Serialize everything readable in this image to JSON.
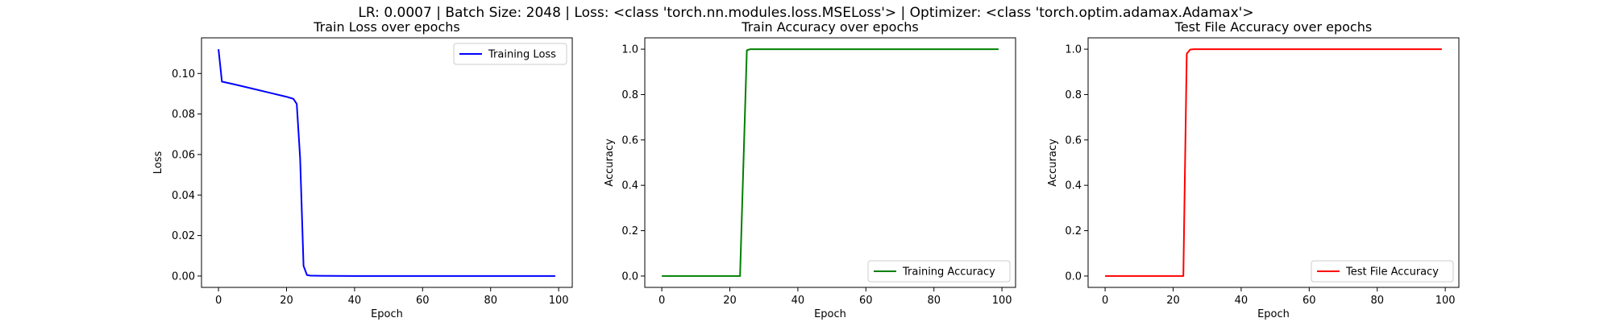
{
  "figure": {
    "suptitle": "LR: 0.0007 | Batch Size: 2048 | Loss: <class 'torch.nn.modules.loss.MSELoss'> | Optimizer: <class 'torch.optim.adamax.Adamax'>"
  },
  "chart_data": [
    {
      "type": "line",
      "title": "Train Loss over epochs",
      "xlabel": "Epoch",
      "ylabel": "Loss",
      "xlim": [
        -5,
        104
      ],
      "ylim": [
        -0.0056,
        0.1176
      ],
      "xticks": [
        0,
        20,
        40,
        60,
        80,
        100
      ],
      "xtick_labels": [
        "0",
        "20",
        "40",
        "60",
        "80",
        "100"
      ],
      "yticks": [
        0,
        0.02,
        0.04,
        0.06,
        0.08,
        0.1
      ],
      "ytick_labels": [
        "0.00",
        "0.02",
        "0.04",
        "0.06",
        "0.08",
        "0.10"
      ],
      "grid": false,
      "legend_position": "upper right",
      "series": [
        {
          "name": "Training Loss",
          "color": "#0000ff",
          "x": [
            0,
            1,
            5,
            10,
            15,
            20,
            22,
            23,
            24,
            25,
            26,
            27,
            30,
            40,
            50,
            60,
            70,
            80,
            90,
            99
          ],
          "y": [
            0.112,
            0.096,
            0.0945,
            0.0925,
            0.0905,
            0.0885,
            0.0875,
            0.085,
            0.058,
            0.005,
            0.0005,
            0.0002,
            0.0001,
            0.0,
            0.0,
            0.0,
            0.0,
            0.0,
            0.0,
            0.0
          ]
        }
      ]
    },
    {
      "type": "line",
      "title": "Train Accuracy over epochs",
      "xlabel": "Epoch",
      "ylabel": "Accuracy",
      "xlim": [
        -5,
        104
      ],
      "ylim": [
        -0.05,
        1.05
      ],
      "xticks": [
        0,
        20,
        40,
        60,
        80,
        100
      ],
      "xtick_labels": [
        "0",
        "20",
        "40",
        "60",
        "80",
        "100"
      ],
      "yticks": [
        0,
        0.2,
        0.4,
        0.6,
        0.8,
        1.0
      ],
      "ytick_labels": [
        "0.0",
        "0.2",
        "0.4",
        "0.6",
        "0.8",
        "1.0"
      ],
      "grid": false,
      "legend_position": "lower right",
      "series": [
        {
          "name": "Training Accuracy",
          "color": "#008000",
          "x": [
            0,
            10,
            20,
            23,
            25,
            26,
            40,
            60,
            80,
            99
          ],
          "y": [
            0,
            0,
            0,
            0,
            0.995,
            1.0,
            1.0,
            1.0,
            1.0,
            1.0
          ]
        }
      ]
    },
    {
      "type": "line",
      "title": "Test File Accuracy over epochs",
      "xlabel": "Epoch",
      "ylabel": "Accuracy",
      "xlim": [
        -5,
        104
      ],
      "ylim": [
        -0.05,
        1.05
      ],
      "xticks": [
        0,
        20,
        40,
        60,
        80,
        100
      ],
      "xtick_labels": [
        "0",
        "20",
        "40",
        "60",
        "80",
        "100"
      ],
      "yticks": [
        0,
        0.2,
        0.4,
        0.6,
        0.8,
        1.0
      ],
      "ytick_labels": [
        "0.0",
        "0.2",
        "0.4",
        "0.6",
        "0.8",
        "1.0"
      ],
      "grid": false,
      "legend_position": "lower right",
      "series": [
        {
          "name": "Test File Accuracy",
          "color": "#ff0000",
          "x": [
            0,
            10,
            20,
            23,
            24,
            25,
            26,
            40,
            60,
            80,
            99
          ],
          "y": [
            0,
            0,
            0,
            0,
            0.98,
            0.998,
            1.0,
            1.0,
            1.0,
            1.0,
            1.0
          ]
        }
      ]
    }
  ]
}
